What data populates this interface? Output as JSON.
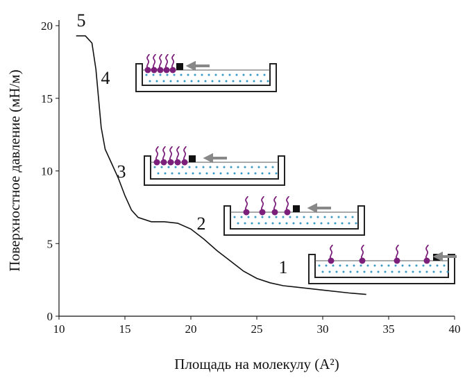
{
  "chart_data": {
    "type": "line",
    "xlabel": "Площадь на молекулу (A²)",
    "ylabel": "Поверхностное давление (мН/м)",
    "xlim": [
      10,
      40
    ],
    "xticks": [
      10,
      15,
      20,
      25,
      30,
      35,
      40
    ],
    "ylim": [
      0,
      20
    ],
    "yticks": [
      0,
      5,
      10,
      15,
      20
    ],
    "series": [
      {
        "color": "#111111",
        "x": [
          11.3,
          12.0,
          12.5,
          12.8,
          13.0,
          13.2,
          13.5,
          14.0,
          14.5,
          15.0,
          15.5,
          16.0,
          17.0,
          18.0,
          19.0,
          20.0,
          21.0,
          22.0,
          23.0,
          24.0,
          25.0,
          26.0,
          27.0,
          28.0,
          30.0,
          32.0,
          33.3
        ],
        "values": [
          19.3,
          19.3,
          18.8,
          17.0,
          15.0,
          13.0,
          11.5,
          10.5,
          9.5,
          8.3,
          7.3,
          6.8,
          6.5,
          6.5,
          6.4,
          6.0,
          5.3,
          4.5,
          3.8,
          3.1,
          2.6,
          2.3,
          2.1,
          2.0,
          1.8,
          1.6,
          1.5
        ]
      }
    ],
    "annotations": [
      "5",
      "4",
      "3",
      "2",
      "1"
    ]
  }
}
